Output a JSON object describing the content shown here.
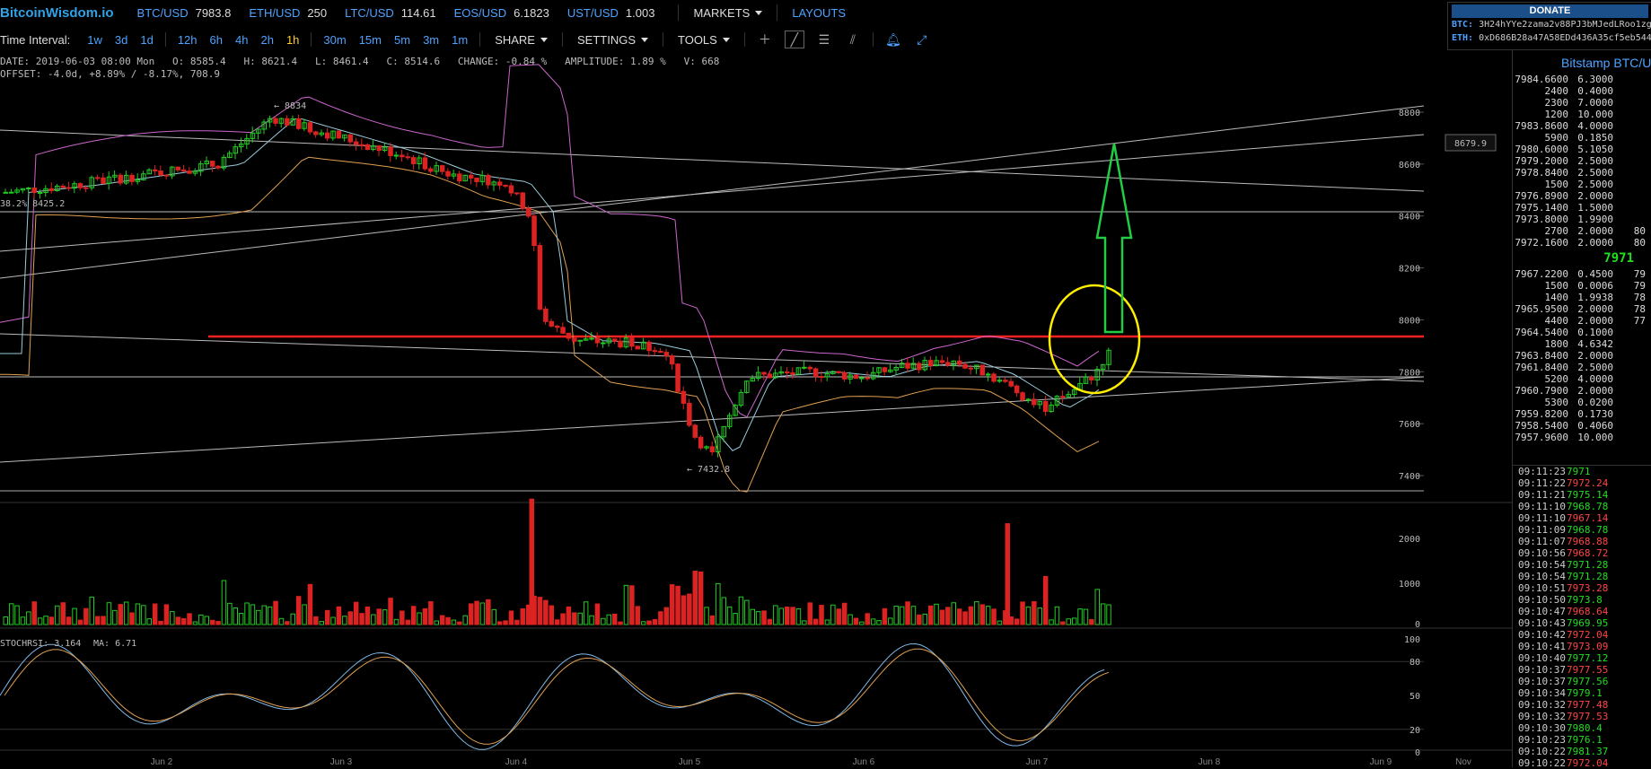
{
  "app": {
    "logo": "BitcoinWisdom.io"
  },
  "tickers": [
    {
      "symbol": "BTC/USD",
      "price": "7983.8"
    },
    {
      "symbol": "ETH/USD",
      "price": "250"
    },
    {
      "symbol": "LTC/USD",
      "price": "114.61"
    },
    {
      "symbol": "EOS/USD",
      "price": "6.1823"
    },
    {
      "symbol": "UST/USD",
      "price": "1.003"
    }
  ],
  "menu": {
    "markets": "MARKETS",
    "layouts": "LAYOUTS"
  },
  "donate": {
    "title": "DONATE",
    "btc_label": "BTC:",
    "btc_addr": "3H24hYYe2zama2v88PJ3bMJedLRoo1zg",
    "eth_label": "ETH:",
    "eth_addr": "0xD686B28a47A58EDd436A35cf5eb544"
  },
  "toolbar": {
    "label": "Time Interval:",
    "groups": [
      [
        "1w",
        "3d",
        "1d"
      ],
      [
        "12h",
        "6h",
        "4h",
        "2h",
        "1h"
      ],
      [
        "30m",
        "15m",
        "5m",
        "3m",
        "1m"
      ]
    ],
    "active": "1h",
    "share": "SHARE",
    "settings": "SETTINGS",
    "tools": "TOOLS"
  },
  "info": {
    "line1": "DATE: 2019-06-03 08:00 Mon   O: 8585.4   H: 8621.4   L: 8461.4   C: 8514.6   CHANGE: -0.84 %   AMPLITUDE: 1.89 %   V: 668",
    "line2": "OFFSET: -4.0d, +8.89% / -8.17%, 708.9"
  },
  "chart": {
    "price_ticks": [
      "8800",
      "8600",
      "8400",
      "8200",
      "8000",
      "7800",
      "7600",
      "7400"
    ],
    "current_price_label": "8679.9",
    "high_label": "← 8834",
    "low_label": "← 7432.8",
    "fib_label": "38.2% 8425.2",
    "volume_ticks": [
      "2000",
      "1000",
      "0"
    ],
    "stoch_label": "STOCHRSI: 3.164",
    "ma_label": "MA: 6.71",
    "stoch_ticks": [
      "100",
      "80",
      "50",
      "20",
      "0"
    ],
    "x_labels": [
      "Jun 2",
      "Jun 3",
      "Jun 4",
      "Jun 5",
      "Jun 6",
      "Jun 7",
      "Jun 8",
      "Jun 9",
      "Nov"
    ],
    "colors": {
      "up": "#22cc22",
      "down": "#dd2222",
      "resistance": "#ff2020",
      "boll_upper": "#cc66cc",
      "boll_lower": "#e0a050",
      "ma": "#99ccdd",
      "annotation_circle": "#ffee00",
      "annotation_arrow": "#22cc44"
    }
  },
  "chart_data": {
    "type": "candlestick",
    "xlabel": "",
    "ylabel": "",
    "ylim": [
      7340,
      8900
    ],
    "resistance_level": 7945,
    "candles": [],
    "volume_ylim": [
      0,
      2800
    ],
    "stochrsi": [],
    "stoch_ylim": [
      0,
      100
    ]
  },
  "orderbook": {
    "title": "Bitstamp BTC/U",
    "asks": [
      {
        "p": "7984.6600",
        "a": "6.3000",
        "t": ""
      },
      {
        "p": "2400",
        "a": "0.4000",
        "t": ""
      },
      {
        "p": "2300",
        "a": "7.0000",
        "t": ""
      },
      {
        "p": "1200",
        "a": "10.000",
        "t": ""
      },
      {
        "p": "7983.8600",
        "a": "4.0000",
        "t": ""
      },
      {
        "p": "5900",
        "a": "0.1850",
        "t": ""
      },
      {
        "p": "7980.6000",
        "a": "5.1050",
        "t": ""
      },
      {
        "p": "7979.2000",
        "a": "2.5000",
        "t": ""
      },
      {
        "p": "7978.8400",
        "a": "2.5000",
        "t": ""
      },
      {
        "p": "1500",
        "a": "2.5000",
        "t": ""
      },
      {
        "p": "7976.8900",
        "a": "2.0000",
        "t": ""
      },
      {
        "p": "7975.1400",
        "a": "1.5000",
        "t": ""
      },
      {
        "p": "7973.8000",
        "a": "1.9900",
        "t": ""
      },
      {
        "p": "2700",
        "a": "2.0000",
        "t": "80"
      },
      {
        "p": "7972.1600",
        "a": "2.0000",
        "t": "80"
      }
    ],
    "last": "7971",
    "bids": [
      {
        "p": "7967.2200",
        "a": "0.4500",
        "t": "79"
      },
      {
        "p": "1500",
        "a": "0.0006",
        "t": "79"
      },
      {
        "p": "1400",
        "a": "1.9938",
        "t": "78"
      },
      {
        "p": "7965.9500",
        "a": "2.0000",
        "t": "78"
      },
      {
        "p": "4400",
        "a": "2.0000",
        "t": "77"
      },
      {
        "p": "7964.5400",
        "a": "0.1000",
        "t": ""
      },
      {
        "p": "1800",
        "a": "4.6342",
        "t": ""
      },
      {
        "p": "7963.8400",
        "a": "2.0000",
        "t": ""
      },
      {
        "p": "7961.8400",
        "a": "2.5000",
        "t": ""
      },
      {
        "p": "5200",
        "a": "4.0000",
        "t": ""
      },
      {
        "p": "7960.7900",
        "a": "2.0000",
        "t": ""
      },
      {
        "p": "5300",
        "a": "0.0200",
        "t": ""
      },
      {
        "p": "7959.8200",
        "a": "0.1730",
        "t": ""
      },
      {
        "p": "7958.5400",
        "a": "0.4060",
        "t": ""
      },
      {
        "p": "7957.9600",
        "a": "10.000",
        "t": ""
      }
    ]
  },
  "trades": [
    {
      "t": "09:11:23",
      "p": "7971",
      "d": "up"
    },
    {
      "t": "09:11:22",
      "p": "7972.24",
      "d": "dn"
    },
    {
      "t": "09:11:21",
      "p": "7975.14",
      "d": "up"
    },
    {
      "t": "09:11:10",
      "p": "7968.78",
      "d": "up"
    },
    {
      "t": "09:11:10",
      "p": "7967.14",
      "d": "dn"
    },
    {
      "t": "09:11:09",
      "p": "7968.78",
      "d": "up"
    },
    {
      "t": "09:11:07",
      "p": "7968.88",
      "d": "dn"
    },
    {
      "t": "09:10:56",
      "p": "7968.72",
      "d": "dn"
    },
    {
      "t": "09:10:54",
      "p": "7971.28",
      "d": "up"
    },
    {
      "t": "09:10:54",
      "p": "7971.28",
      "d": "up"
    },
    {
      "t": "09:10:51",
      "p": "7973.28",
      "d": "dn"
    },
    {
      "t": "09:10:50",
      "p": "7973.8",
      "d": "up"
    },
    {
      "t": "09:10:47",
      "p": "7968.64",
      "d": "dn"
    },
    {
      "t": "09:10:43",
      "p": "7969.95",
      "d": "up"
    },
    {
      "t": "09:10:42",
      "p": "7972.04",
      "d": "dn"
    },
    {
      "t": "09:10:41",
      "p": "7973.09",
      "d": "dn"
    },
    {
      "t": "09:10:40",
      "p": "7977.12",
      "d": "up"
    },
    {
      "t": "09:10:37",
      "p": "7977.55",
      "d": "dn"
    },
    {
      "t": "09:10:37",
      "p": "7977.56",
      "d": "up"
    },
    {
      "t": "09:10:34",
      "p": "7979.1",
      "d": "up"
    },
    {
      "t": "09:10:32",
      "p": "7977.48",
      "d": "dn"
    },
    {
      "t": "09:10:32",
      "p": "7977.53",
      "d": "dn"
    },
    {
      "t": "09:10:30",
      "p": "7980.4",
      "d": "up"
    },
    {
      "t": "09:10:23",
      "p": "7976.1",
      "d": "up"
    },
    {
      "t": "09:10:22",
      "p": "7981.37",
      "d": "up"
    },
    {
      "t": "09:10:22",
      "p": "7972.04",
      "d": "dn"
    }
  ]
}
